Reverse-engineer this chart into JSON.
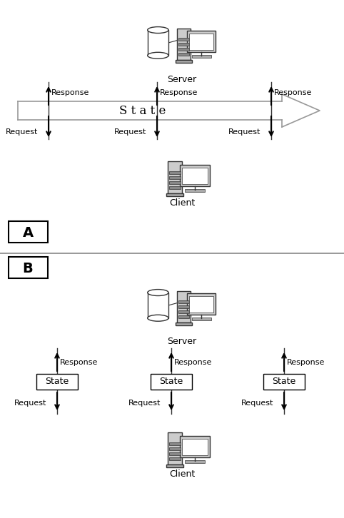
{
  "bg_color": "#ffffff",
  "line_color": "#000000",
  "text_color": "#000000",
  "label_A": "A",
  "label_B": "B",
  "state_label": "S t a t e",
  "server_label": "Server",
  "client_label": "Client",
  "response_label": "Response",
  "request_label": "Request",
  "state_box_label": "State",
  "figsize": [
    4.82,
    7.26
  ],
  "dpi": 100,
  "arrow_fill": "#e8e8e8",
  "arrow_edge": "#999999",
  "divider_color": "#888888"
}
